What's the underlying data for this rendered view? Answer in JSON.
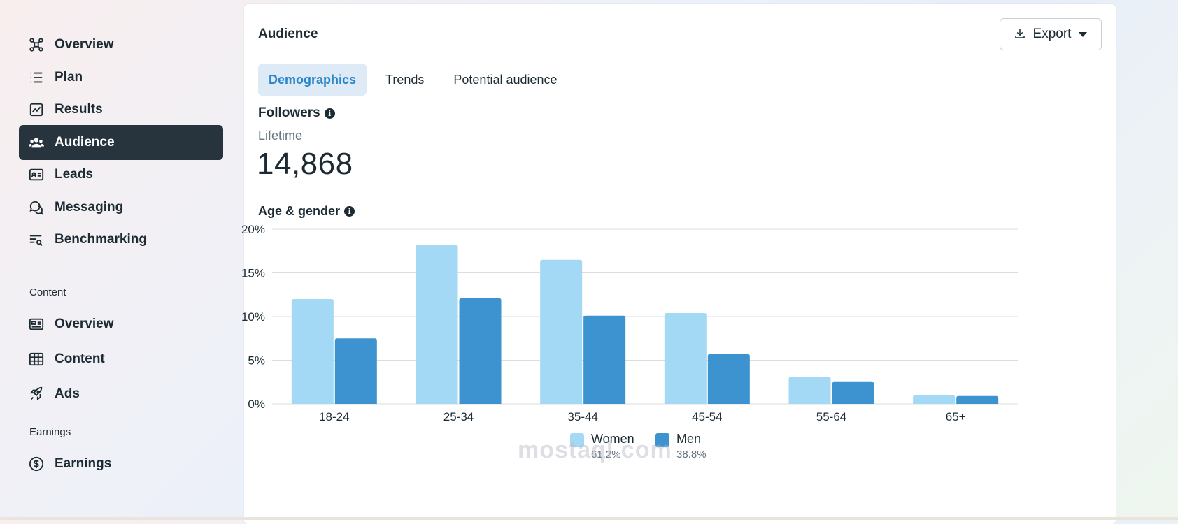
{
  "sidebar": {
    "items": [
      {
        "label": "Overview",
        "icon": "overview-nodes-icon"
      },
      {
        "label": "Plan",
        "icon": "list-icon"
      },
      {
        "label": "Results",
        "icon": "line-chart-icon"
      },
      {
        "label": "Audience",
        "icon": "people-icon",
        "active": true
      },
      {
        "label": "Leads",
        "icon": "id-card-icon"
      },
      {
        "label": "Messaging",
        "icon": "chat-bubbles-icon"
      },
      {
        "label": "Benchmarking",
        "icon": "search-list-icon"
      }
    ],
    "content_section": "Content",
    "content_items": [
      {
        "label": "Overview",
        "icon": "content-card-icon"
      },
      {
        "label": "Content",
        "icon": "table-icon"
      },
      {
        "label": "Ads",
        "icon": "rocket-icon"
      }
    ],
    "earnings_section": "Earnings",
    "earnings_items": [
      {
        "label": "Earnings",
        "icon": "dollar-circle-icon"
      }
    ]
  },
  "panel": {
    "title": "Audience",
    "export_label": "Export",
    "tabs": [
      {
        "label": "Demographics",
        "active": true
      },
      {
        "label": "Trends"
      },
      {
        "label": "Potential audience"
      }
    ]
  },
  "followers": {
    "title": "Followers",
    "period": "Lifetime",
    "count": "14,868"
  },
  "age_gender": {
    "title": "Age & gender"
  },
  "colors": {
    "women": "#a3d9f5",
    "men": "#3d93cf",
    "active_nav": "#27343d",
    "active_tab_bg": "#deeaf5",
    "active_tab_text": "#2b86c9"
  },
  "chart_data": {
    "type": "bar",
    "categories": [
      "18-24",
      "25-34",
      "35-44",
      "45-54",
      "55-64",
      "65+"
    ],
    "series": [
      {
        "name": "Women",
        "values": [
          12.0,
          18.2,
          16.5,
          10.4,
          3.1,
          1.0
        ],
        "share": "61.2%"
      },
      {
        "name": "Men",
        "values": [
          7.5,
          12.1,
          10.1,
          5.7,
          2.5,
          0.9
        ],
        "share": "38.8%"
      }
    ],
    "yticks": [
      "0%",
      "5%",
      "10%",
      "15%",
      "20%"
    ],
    "ylim": [
      0,
      20
    ],
    "grid": true,
    "legend": "bottom-center"
  },
  "watermark": "mostaql.com"
}
